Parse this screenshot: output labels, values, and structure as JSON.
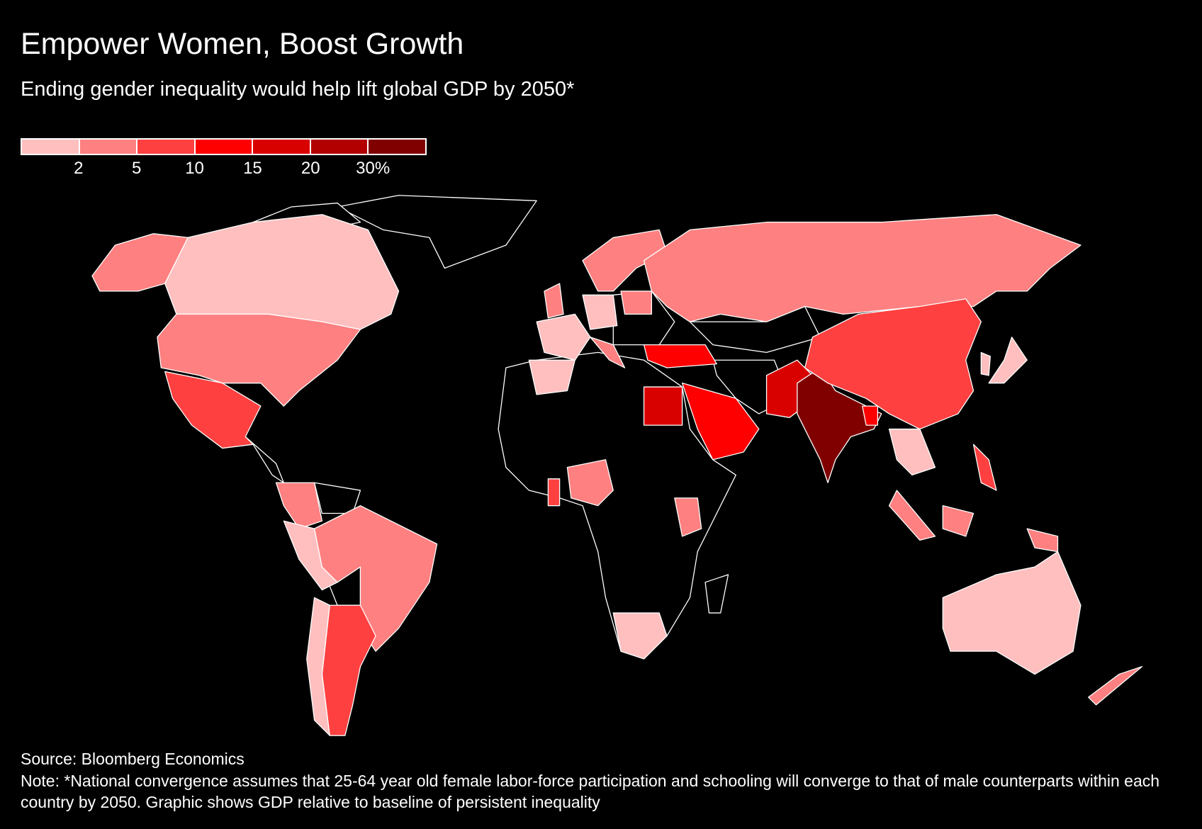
{
  "title": "Empower Women, Boost Growth",
  "subtitle": "Ending gender inequality would help lift global GDP by 2050*",
  "legend": {
    "colors": [
      "#ffbfbf",
      "#ff8080",
      "#ff4040",
      "#ff0000",
      "#d90000",
      "#b20000",
      "#800000"
    ],
    "labels": [
      "2",
      "5",
      "10",
      "15",
      "20",
      "30%"
    ]
  },
  "no_data_color": "#000000",
  "countries": [
    {
      "name": "Canada",
      "bucket": 0
    },
    {
      "name": "Alaska (US)",
      "bucket": 1
    },
    {
      "name": "United States",
      "bucket": 1
    },
    {
      "name": "Mexico",
      "bucket": 2
    },
    {
      "name": "Colombia",
      "bucket": 1
    },
    {
      "name": "Peru",
      "bucket": 0
    },
    {
      "name": "Brazil",
      "bucket": 1
    },
    {
      "name": "Argentina",
      "bucket": 2
    },
    {
      "name": "Chile",
      "bucket": 0
    },
    {
      "name": "Scandinavia",
      "bucket": 1
    },
    {
      "name": "United Kingdom",
      "bucket": 1
    },
    {
      "name": "France",
      "bucket": 0
    },
    {
      "name": "Spain",
      "bucket": 0
    },
    {
      "name": "Germany",
      "bucket": 0
    },
    {
      "name": "Italy",
      "bucket": 1
    },
    {
      "name": "Poland",
      "bucket": 1
    },
    {
      "name": "Russia",
      "bucket": 1
    },
    {
      "name": "Turkey",
      "bucket": 3
    },
    {
      "name": "Saudi Arabia",
      "bucket": 3
    },
    {
      "name": "Egypt",
      "bucket": 4
    },
    {
      "name": "Pakistan",
      "bucket": 4
    },
    {
      "name": "India",
      "bucket": 6
    },
    {
      "name": "Bangladesh",
      "bucket": 3
    },
    {
      "name": "China",
      "bucket": 2
    },
    {
      "name": "Thailand/Vietnam",
      "bucket": 0
    },
    {
      "name": "Philippines",
      "bucket": 2
    },
    {
      "name": "Indonesia",
      "bucket": 1
    },
    {
      "name": "Japan",
      "bucket": 0
    },
    {
      "name": "South Korea",
      "bucket": 0
    },
    {
      "name": "Nigeria",
      "bucket": 1
    },
    {
      "name": "Ghana",
      "bucket": 2
    },
    {
      "name": "Kenya",
      "bucket": 1
    },
    {
      "name": "South Africa",
      "bucket": 0
    },
    {
      "name": "Australia",
      "bucket": 0
    },
    {
      "name": "New Zealand",
      "bucket": 1
    }
  ],
  "source": "Source: Bloomberg Economics",
  "note": "Note: *National convergence assumes that 25-64 year old female labor-force participation and schooling will converge to that of male counterparts within each country by 2050. Graphic shows GDP relative to baseline of persistent inequality"
}
